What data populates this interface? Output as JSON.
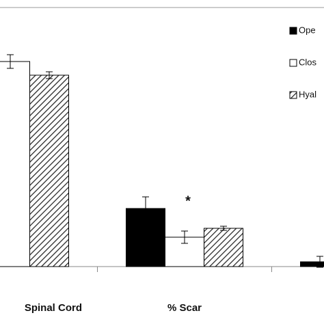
{
  "chart_data": {
    "type": "bar",
    "categories": [
      "Spinal Cord",
      "% Scar",
      null
    ],
    "ylim": [
      0,
      390
    ],
    "annotation": "*",
    "series": [
      {
        "name": "Ope",
        "color": "#000000",
        "values": [
          null,
          85,
          7
        ],
        "errors": [
          null,
          17,
          8
        ]
      },
      {
        "name": "Clos",
        "color": "#ffffff",
        "values": [
          300,
          43,
          null
        ],
        "errors": [
          10,
          9,
          null
        ]
      },
      {
        "name": "Hyal",
        "color": "hatch",
        "values": [
          280,
          56,
          null
        ],
        "errors": [
          5,
          3,
          null
        ]
      }
    ]
  }
}
